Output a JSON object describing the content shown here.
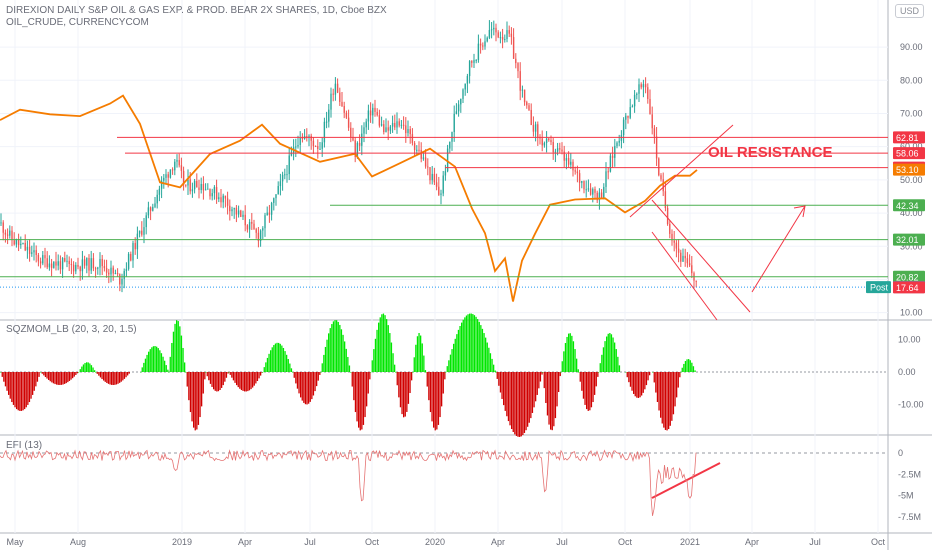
{
  "header": {
    "title": "DIREXION DAILY S&P OIL & GAS EXP. & PROD. BEAR 2X SHARES, 1D, Cboe BZX",
    "subtitle": "OIL_CRUDE, CURRENCYCOM",
    "currency": "USD"
  },
  "annotation": {
    "text": "OIL RESISTANCE"
  },
  "colors": {
    "oil_line": "#f57c00",
    "resistance": "#f23645",
    "support": "#4caf50",
    "bull": "#26a69a",
    "bear": "#ef5350",
    "mom_up": "#00e600",
    "mom_down": "#d00000",
    "efi": "#e57373",
    "grid": "#f0f3fa",
    "axis_text": "#6a6d78"
  },
  "chart_data": [
    {
      "name": "price-pane",
      "type": "candlestick+line",
      "y_ticks": [
        "90.00",
        "80.00",
        "70.00",
        "60.00",
        "50.00",
        "40.00",
        "30.00",
        "20.00",
        "10.00"
      ],
      "x_ticks": [
        "May",
        "Aug",
        "2019",
        "Apr",
        "Jul",
        "Oct",
        "2020",
        "Apr",
        "Jul",
        "Oct",
        "2021",
        "Apr",
        "Jul",
        "Oct"
      ],
      "resistance_levels": [
        62.81,
        58.06,
        53.69
      ],
      "support_levels": [
        42.34,
        32.01,
        20.82
      ],
      "price_labels": [
        {
          "text": "62.81",
          "value": 62.81,
          "kind": "resistance"
        },
        {
          "text": "58.06",
          "value": 58.06,
          "kind": "resistance"
        },
        {
          "text": "53.69",
          "value": 53.69,
          "kind": "resistance"
        },
        {
          "text": "53.10",
          "value": 53.1,
          "kind": "oil"
        },
        {
          "text": "42.34",
          "value": 42.34,
          "kind": "support"
        },
        {
          "text": "32.01",
          "value": 32.01,
          "kind": "support"
        },
        {
          "text": "20.82",
          "value": 20.82,
          "kind": "support"
        },
        {
          "text": "17.69",
          "value": 17.69,
          "kind": "post",
          "tag": "Post"
        },
        {
          "text": "17.64",
          "value": 17.64,
          "kind": "last"
        }
      ]
    },
    {
      "name": "squeeze-momentum",
      "type": "histogram",
      "title": "SQZMOM_LB (20, 3, 20, 1.5)",
      "y_ticks": [
        "10.00",
        "0.00",
        "-10.00"
      ]
    },
    {
      "name": "elder-force-index",
      "type": "line",
      "title": "EFI (13)",
      "y_ticks": [
        "0",
        "-2.5M",
        "-5M",
        "-7.5M"
      ]
    }
  ]
}
